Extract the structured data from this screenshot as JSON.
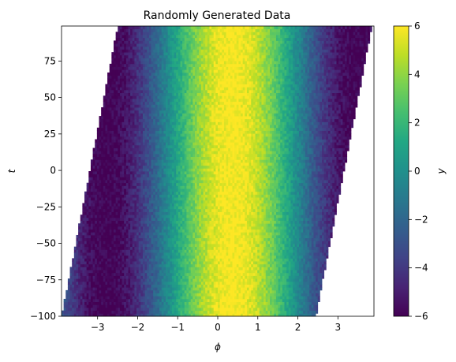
{
  "chart_data": {
    "type": "heatmap",
    "title": "Randomly Generated Data",
    "xlabel": "ϕ",
    "ylabel": "t",
    "colorbar_label": "y",
    "colormap": "viridis",
    "xlim": [
      -3.9,
      3.9
    ],
    "ylim": [
      -100,
      99
    ],
    "clim": [
      -6,
      6
    ],
    "x_ticks": [
      -3,
      -2,
      -1,
      0,
      1,
      2,
      3
    ],
    "x_tick_labels": [
      "−3",
      "−2",
      "−1",
      "0",
      "1",
      "2",
      "3"
    ],
    "y_ticks": [
      -100,
      -75,
      -50,
      -25,
      0,
      25,
      50,
      75
    ],
    "y_tick_labels": [
      "−100",
      "−75",
      "−50",
      "−25",
      "0",
      "25",
      "50",
      "75"
    ],
    "colorbar_ticks": [
      -6,
      -4,
      -2,
      0,
      2,
      4,
      6
    ],
    "colorbar_tick_labels": [
      "−6",
      "−4",
      "−2",
      "0",
      "2",
      "4",
      "6"
    ],
    "function": "y = 6·sin(ϕ + 1.2) + noise",
    "domain": {
      "left_edge_phi_at_t_min": -3.9,
      "left_edge_phi_at_t_max": -2.5,
      "right_edge_phi_at_t_min": 2.45,
      "right_edge_phi_at_t_max": 3.85
    }
  }
}
